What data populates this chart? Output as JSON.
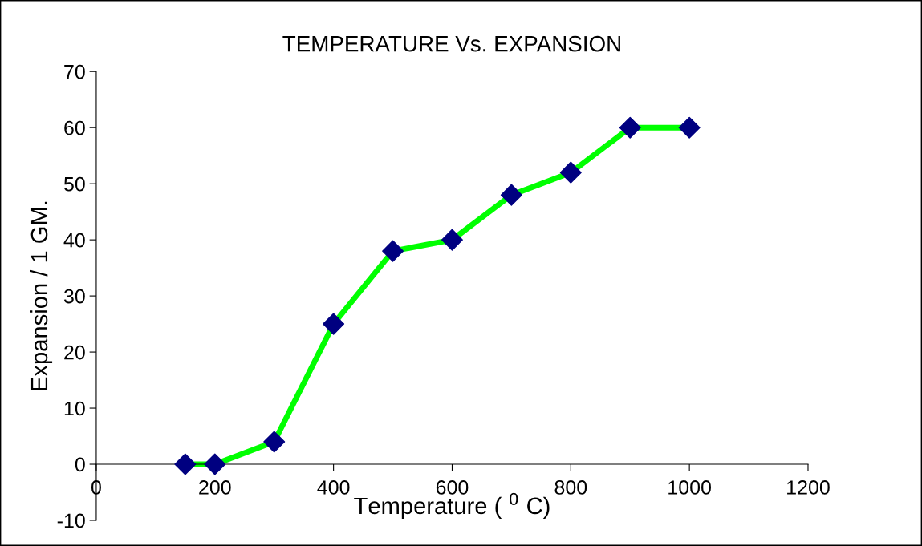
{
  "chart_data": {
    "type": "line",
    "title": "TEMPERATURE Vs. EXPANSION",
    "xlabel": "Temperature ( $^{0}$ C)",
    "ylabel": "Expansion / 1 GM.",
    "x": [
      150,
      200,
      300,
      400,
      500,
      600,
      700,
      800,
      900,
      1000
    ],
    "series": [
      {
        "color": "#00ff00",
        "values": [
          0,
          0,
          4,
          25,
          38,
          40,
          48,
          52,
          60,
          60
        ],
        "colors": [
          "#000080",
          "#000080",
          "#000080",
          "#000080",
          "#000080",
          "#000080",
          "#000080",
          "#000080",
          "#000080",
          "#000080"
        ]
      }
    ],
    "marker": "diamond",
    "line_style": "solid",
    "xlim": [
      0,
      1200
    ],
    "xticks": [
      0,
      200,
      400,
      600,
      800,
      1000,
      1200
    ],
    "ylim": [
      -10,
      70
    ],
    "yticks": [
      -10,
      0,
      10,
      20,
      30,
      40,
      50,
      60,
      70
    ],
    "grid": false,
    "legend": false
  }
}
